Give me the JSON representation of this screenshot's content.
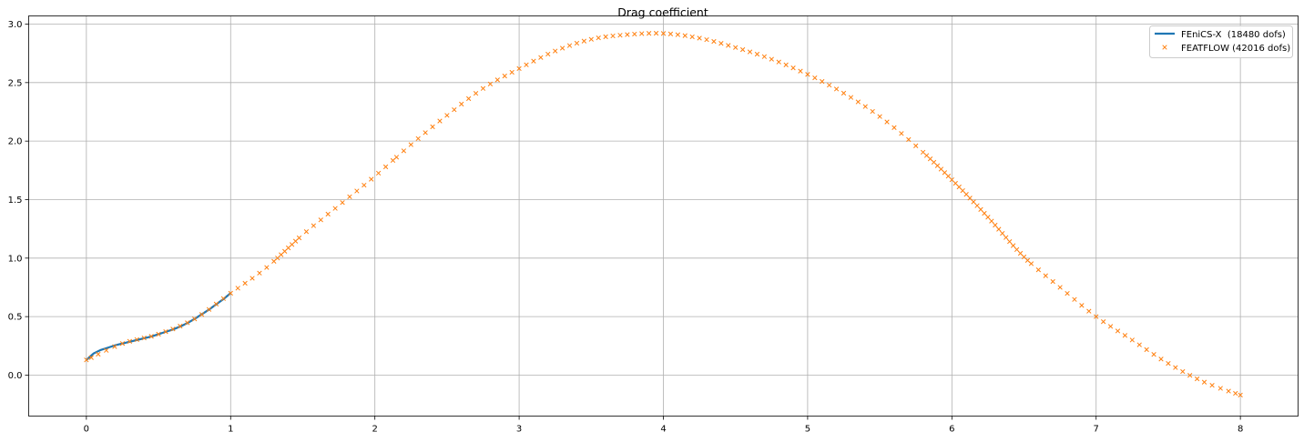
{
  "chart_data": {
    "type": "line",
    "title": "Drag coefficient",
    "xlabel": "",
    "ylabel": "",
    "xlim": [
      -0.4,
      8.4
    ],
    "ylim": [
      -0.35,
      3.07
    ],
    "xticks": [
      0,
      1,
      2,
      3,
      4,
      5,
      6,
      7,
      8
    ],
    "yticks": [
      -0.5,
      0.0,
      0.5,
      1.0,
      1.5,
      2.0,
      2.5,
      3.0
    ],
    "ytick_labels": [
      "0.0",
      "0.5",
      "1.0",
      "1.5",
      "2.0",
      "2.5",
      "3.0"
    ],
    "grid": true,
    "legend_position": "top-right",
    "series": [
      {
        "name": "FEniCS-X  (18480 dofs)",
        "style": "line",
        "color": "#1f77b4",
        "x": [
          0.0,
          0.05,
          0.1,
          0.15,
          0.2,
          0.25,
          0.3,
          0.35,
          0.4,
          0.45,
          0.5,
          0.55,
          0.6,
          0.65,
          0.7,
          0.75,
          0.8,
          0.85,
          0.9,
          0.95,
          1.0
        ],
        "y": [
          0.13,
          0.185,
          0.215,
          0.235,
          0.255,
          0.27,
          0.285,
          0.3,
          0.315,
          0.33,
          0.35,
          0.37,
          0.39,
          0.415,
          0.445,
          0.48,
          0.52,
          0.56,
          0.605,
          0.65,
          0.7
        ]
      },
      {
        "name": "FEATFLOW (42016 dofs)",
        "style": "marker-x",
        "color": "#ff7f0e",
        "x": [
          0.0,
          0.25,
          0.5,
          0.75,
          1.0,
          1.25,
          1.5,
          1.75,
          2.0,
          2.25,
          2.5,
          2.75,
          3.0,
          3.25,
          3.5,
          3.75,
          4.0,
          4.25,
          4.5,
          4.75,
          5.0,
          5.25,
          5.5,
          5.75,
          6.0,
          6.25,
          6.5,
          6.75,
          7.0,
          7.25,
          7.5,
          7.75,
          8.0
        ],
        "y": [
          0.13,
          0.27,
          0.35,
          0.48,
          0.7,
          0.92,
          1.2,
          1.45,
          1.7,
          1.97,
          2.22,
          2.45,
          2.62,
          2.77,
          2.87,
          2.91,
          2.92,
          2.88,
          2.8,
          2.7,
          2.57,
          2.41,
          2.21,
          1.96,
          1.67,
          1.35,
          1.01,
          0.75,
          0.5,
          0.3,
          0.1,
          -0.06,
          -0.17
        ]
      }
    ]
  }
}
